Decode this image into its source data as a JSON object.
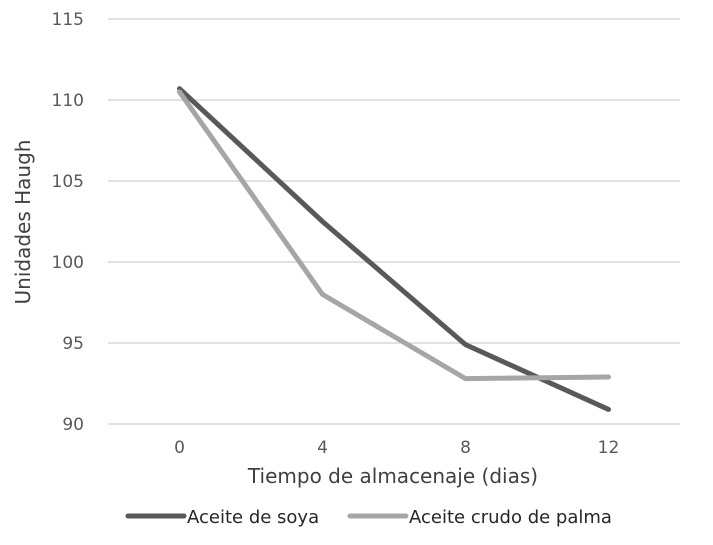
{
  "chart_data": {
    "type": "line",
    "title": "",
    "xlabel": "Tiempo de almacenaje (dias)",
    "ylabel": "Unidades Haugh",
    "categories": [
      "0",
      "4",
      "8",
      "12"
    ],
    "x": [
      0,
      4,
      8,
      12
    ],
    "ylim": [
      90,
      115
    ],
    "yticks": [
      90,
      95,
      100,
      105,
      110,
      115
    ],
    "grid": true,
    "legend_position": "bottom",
    "series": [
      {
        "name": "Aceite de soya",
        "color": "#595959",
        "values": [
          110.7,
          102.5,
          94.9,
          90.9
        ]
      },
      {
        "name": "Aceite crudo de palma",
        "color": "#a6a6a6",
        "values": [
          110.5,
          98.0,
          92.8,
          92.9
        ]
      }
    ]
  },
  "colors": {
    "gridline": "#d9d9d9",
    "tick_text": "#595959"
  }
}
